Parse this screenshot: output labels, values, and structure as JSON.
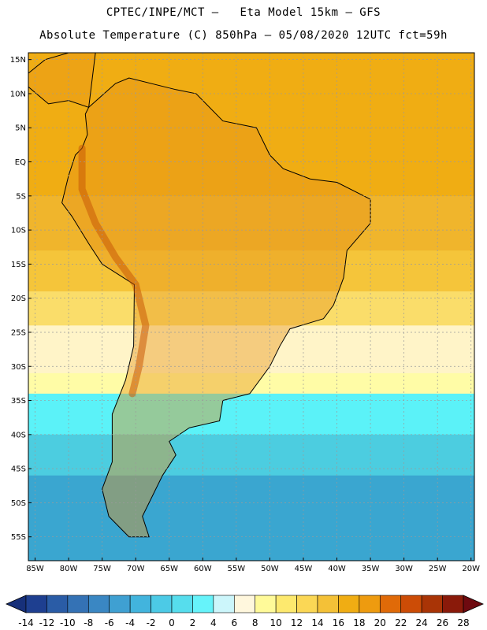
{
  "header": {
    "title_line1": "CPTEC/INPE/MCT –   Eta Model 15km – GFS",
    "title_line2": "Absolute Temperature (C) 850hPa – 05/08/2020 12UTC fct=59h"
  },
  "map": {
    "lon_range": [
      -86,
      -19.5
    ],
    "lat_range": [
      -58.5,
      16
    ],
    "lat_ticks": [
      {
        "value": 15,
        "label": "15N"
      },
      {
        "value": 10,
        "label": "10N"
      },
      {
        "value": 5,
        "label": "5N"
      },
      {
        "value": 0,
        "label": "EQ"
      },
      {
        "value": -5,
        "label": "5S"
      },
      {
        "value": -10,
        "label": "10S"
      },
      {
        "value": -15,
        "label": "15S"
      },
      {
        "value": -20,
        "label": "20S"
      },
      {
        "value": -25,
        "label": "25S"
      },
      {
        "value": -30,
        "label": "30S"
      },
      {
        "value": -35,
        "label": "35S"
      },
      {
        "value": -40,
        "label": "40S"
      },
      {
        "value": -45,
        "label": "45S"
      },
      {
        "value": -50,
        "label": "50S"
      },
      {
        "value": -55,
        "label": "55S"
      }
    ],
    "lon_ticks": [
      {
        "value": -85,
        "label": "85W"
      },
      {
        "value": -80,
        "label": "80W"
      },
      {
        "value": -75,
        "label": "75W"
      },
      {
        "value": -70,
        "label": "70W"
      },
      {
        "value": -65,
        "label": "65W"
      },
      {
        "value": -60,
        "label": "60W"
      },
      {
        "value": -55,
        "label": "55W"
      },
      {
        "value": -50,
        "label": "50W"
      },
      {
        "value": -45,
        "label": "45W"
      },
      {
        "value": -40,
        "label": "40W"
      },
      {
        "value": -35,
        "label": "35W"
      },
      {
        "value": -30,
        "label": "30W"
      },
      {
        "value": -25,
        "label": "25W"
      },
      {
        "value": -20,
        "label": "20W"
      }
    ],
    "field_bands": [
      {
        "lat_top": 16,
        "lat_bottom": -5,
        "color": "#f0ad13"
      },
      {
        "lat_top": -5,
        "lat_bottom": -13,
        "color": "#f0b52c"
      },
      {
        "lat_top": -13,
        "lat_bottom": -19,
        "color": "#f5c53a"
      },
      {
        "lat_top": -19,
        "lat_bottom": -24,
        "color": "#fadd6a"
      },
      {
        "lat_top": -24,
        "lat_bottom": -31,
        "color": "#fff4c8"
      },
      {
        "lat_top": -31,
        "lat_bottom": -34,
        "color": "#fffca6"
      },
      {
        "lat_top": -34,
        "lat_bottom": -40,
        "color": "#5bf2f8"
      },
      {
        "lat_top": -40,
        "lat_bottom": -46,
        "color": "#4ccde0"
      },
      {
        "lat_top": -46,
        "lat_bottom": -58.5,
        "color": "#3aa6d0"
      }
    ]
  },
  "colorbar": {
    "values": [
      "-14",
      "-12",
      "-10",
      "-8",
      "-6",
      "-4",
      "-2",
      "0",
      "2",
      "4",
      "6",
      "8",
      "10",
      "12",
      "14",
      "16",
      "18",
      "20",
      "22",
      "24",
      "26",
      "28"
    ],
    "colors": [
      "#1e3f90",
      "#2a5ca6",
      "#3472b5",
      "#3a87c3",
      "#3fa0d2",
      "#42b4dd",
      "#4ccae6",
      "#56dded",
      "#66f3fa",
      "#ccf6fb",
      "#fff7dd",
      "#fffa99",
      "#fde96e",
      "#fbd755",
      "#f4c137",
      "#f0ad13",
      "#ee9b0f",
      "#e06a08",
      "#cc4c06",
      "#a93406",
      "#8a1a0a"
    ],
    "end_left": "#17307a",
    "end_right": "#6e0a10"
  }
}
